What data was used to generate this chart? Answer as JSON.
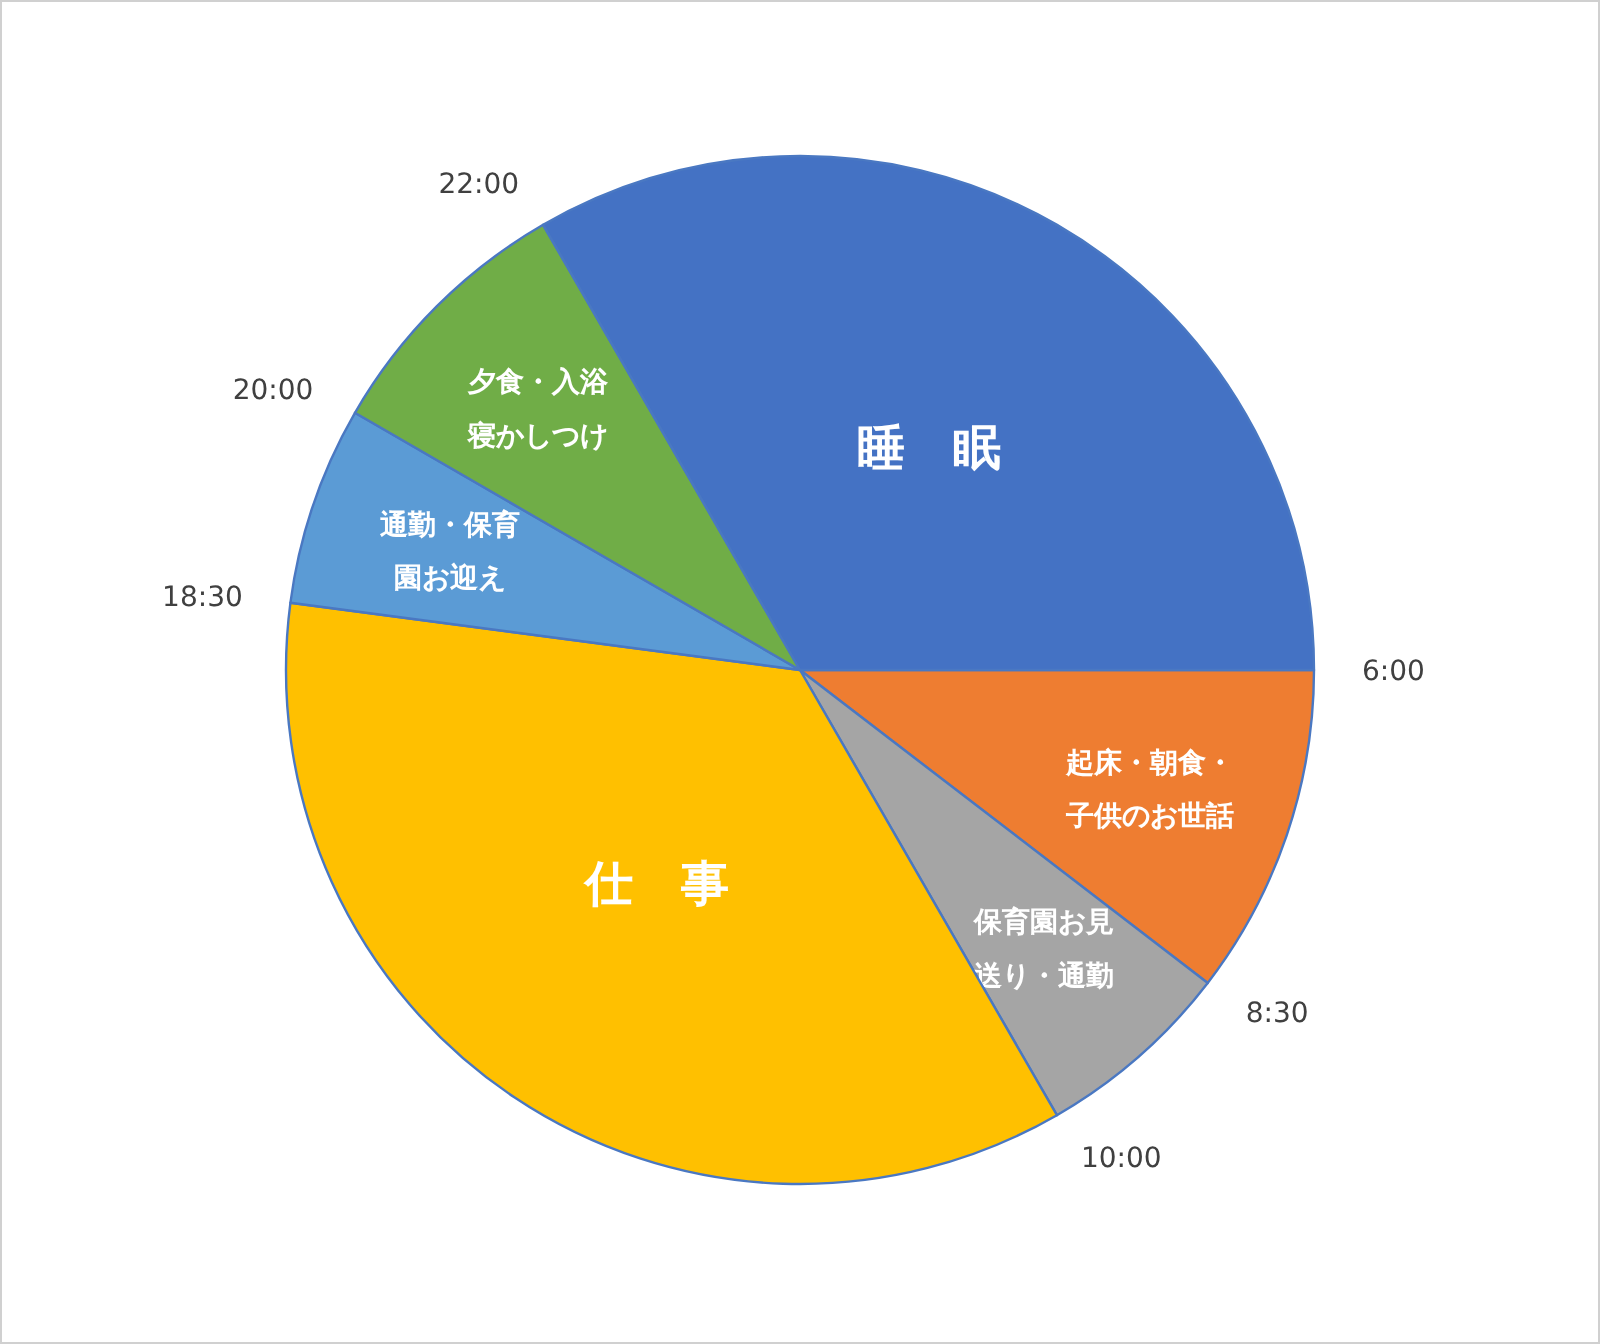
{
  "chart_data": {
    "type": "pie",
    "categories": [
      "起床・朝食・子供のお世話",
      "保育園お見送り・通勤",
      "仕　事",
      "通勤・保育園お迎え",
      "夕食・入浴寝かしつけ",
      "睡　眠"
    ],
    "values": [
      10.42,
      6.25,
      35.42,
      6.25,
      8.33,
      33.33
    ],
    "colors": [
      "#ee7d31",
      "#a5a5a5",
      "#ffc000",
      "#5b9bd5",
      "#70ad47",
      "#4472c4"
    ],
    "annotations": [
      "6:00",
      "8:30",
      "10:00",
      "18:30",
      "20:00",
      "22:00"
    ]
  }
}
